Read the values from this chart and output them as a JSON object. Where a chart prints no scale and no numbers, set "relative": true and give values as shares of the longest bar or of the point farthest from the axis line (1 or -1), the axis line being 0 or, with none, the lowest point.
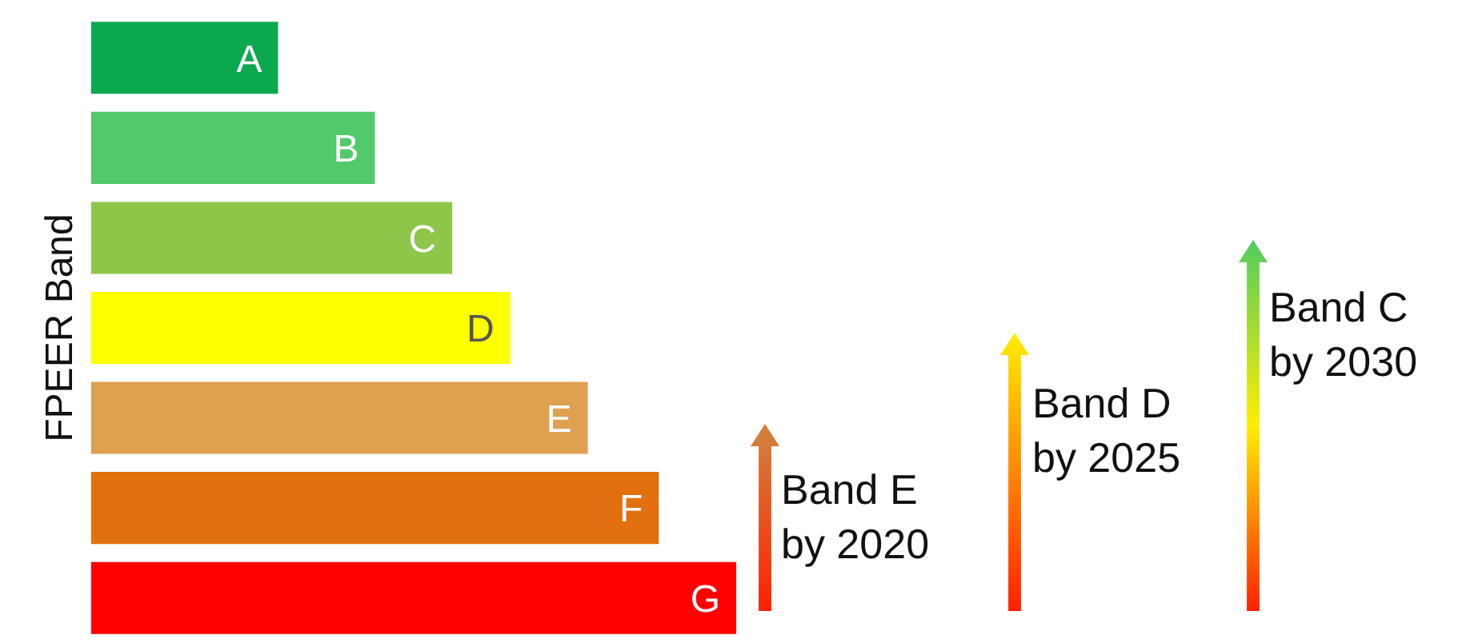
{
  "chart_data": {
    "type": "bar",
    "orientation": "horizontal",
    "relative": true,
    "ylabel": "FPEER Band",
    "tick_labels": false,
    "legend": false,
    "categories": [
      "A",
      "B",
      "C",
      "D",
      "E",
      "F",
      "G"
    ],
    "values": [
      0.29,
      0.44,
      0.56,
      0.65,
      0.77,
      0.88,
      1
    ],
    "colors": [
      "#0ca84e",
      "#52c96a",
      "#8ec64a",
      "#ffff00",
      "#dfa050",
      "#e3700f",
      "#ff0000"
    ],
    "annotations": [
      "Band E\nby 2020",
      "Band D\nby 2025",
      "Band C\nby 2030"
    ]
  }
}
